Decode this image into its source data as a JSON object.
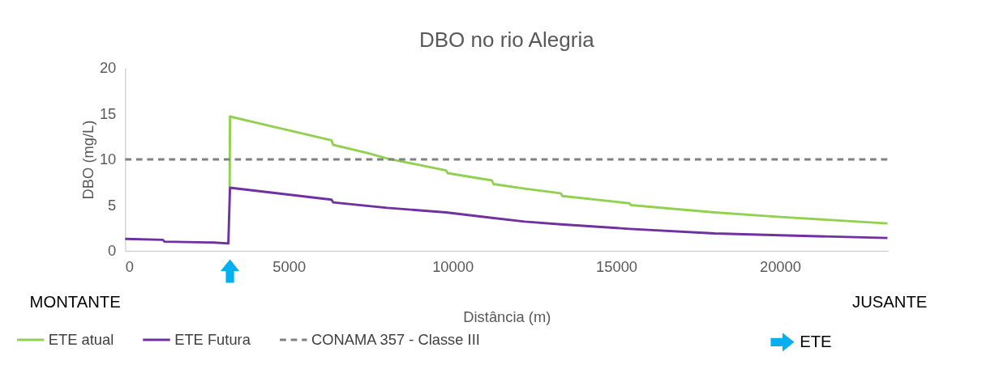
{
  "chart_data": {
    "type": "line",
    "title": "DBO no rio Alegria",
    "xlabel": "Distância (m)",
    "ylabel": "DBO (mg/L)",
    "xlim": [
      0,
      23300
    ],
    "xticks": [
      0,
      5000,
      10000,
      15000,
      20000
    ],
    "ylim": [
      0,
      20
    ],
    "yticks": [
      0,
      5,
      10,
      15,
      20
    ],
    "grid": false,
    "legend": "bottom",
    "line_style": "solid",
    "marker": "none",
    "series": [
      {
        "name": "ETE atual",
        "color": "#92d050",
        "x": [
          3190,
          3200,
          4500,
          6300,
          6350,
          7400,
          8000,
          9800,
          9850,
          11200,
          11250,
          12200,
          13300,
          13350,
          15400,
          15450,
          18000,
          20000,
          23280
        ],
        "values": [
          7,
          14.7,
          13.6,
          12.1,
          11.6,
          10.7,
          10.1,
          8.8,
          8.5,
          7.7,
          7.3,
          6.8,
          6.3,
          6.0,
          5.2,
          5.0,
          4.2,
          3.7,
          3.0
        ]
      },
      {
        "name": "ETE Futura",
        "color": "#7030a0",
        "x": [
          0,
          1150,
          1200,
          2700,
          3150,
          3200,
          6300,
          6350,
          8000,
          9800,
          11200,
          12200,
          13300,
          15400,
          18000,
          20000,
          23280
        ],
        "values": [
          1.3,
          1.2,
          1.0,
          0.9,
          0.8,
          6.9,
          5.6,
          5.3,
          4.7,
          4.2,
          3.6,
          3.2,
          2.9,
          2.4,
          1.9,
          1.7,
          1.4
        ]
      }
    ],
    "ref_lines": [
      {
        "axis": "y",
        "value": 10,
        "label": "CONAMA 357 - Classe III",
        "color": "#808080",
        "line_style": "dashed"
      }
    ],
    "annotations": [
      "MONTANTE",
      "JUSANTE",
      "ETE"
    ]
  }
}
